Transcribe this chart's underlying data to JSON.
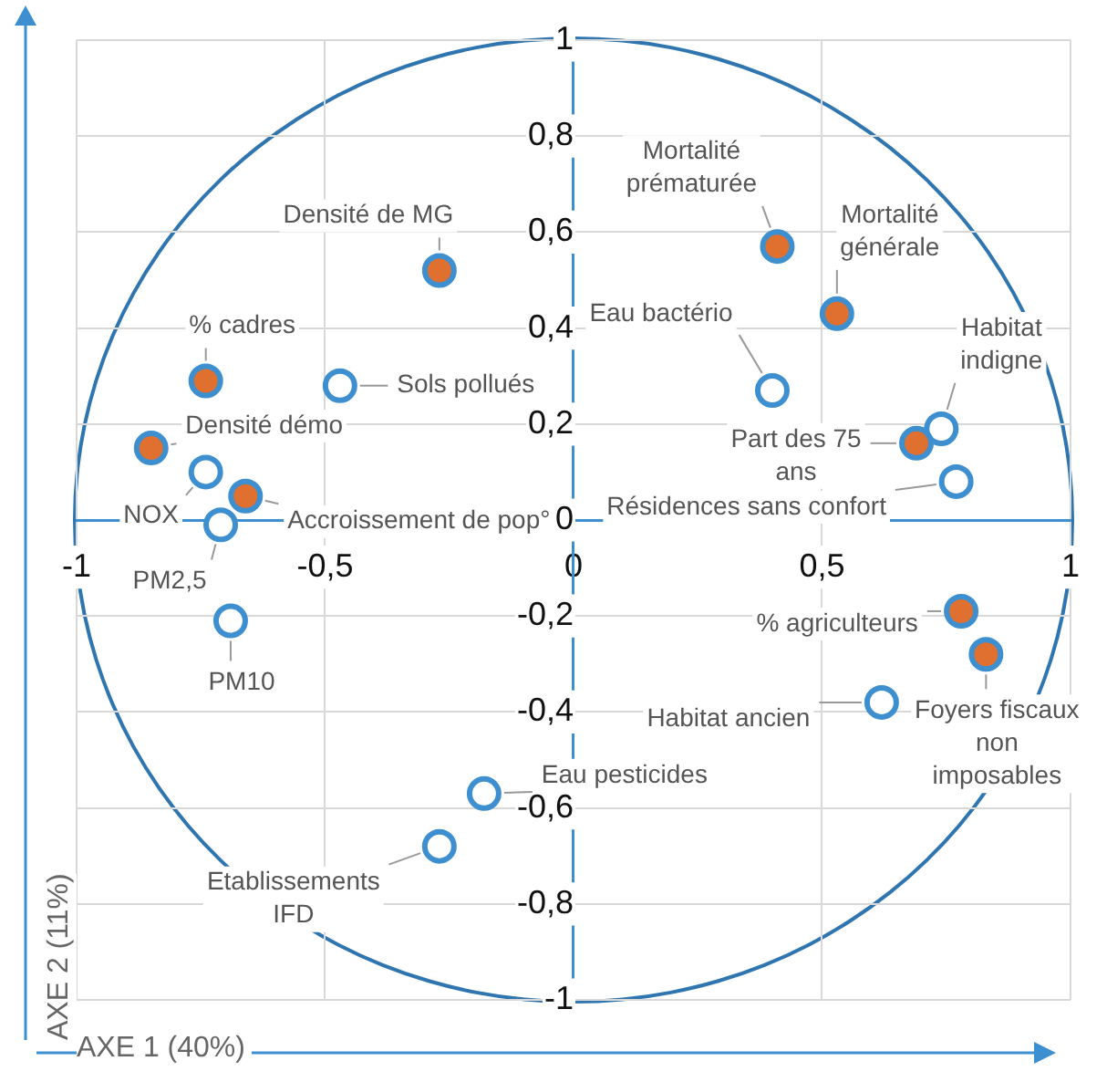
{
  "chart_data": {
    "type": "scatter",
    "xlabel": "AXE 1 (40%)",
    "ylabel": "AXE 2 (11%)",
    "xlim": [
      -1,
      1
    ],
    "ylim": [
      -1,
      1
    ],
    "xticks": [
      -1,
      {
        "value": -0.5,
        "label": "-0,5"
      },
      0,
      {
        "value": 0.5,
        "label": "0,5"
      },
      1
    ],
    "yticks": [
      -1,
      {
        "value": -0.8,
        "label": "-0,8"
      },
      {
        "value": -0.6,
        "label": "-0,6"
      },
      {
        "value": -0.4,
        "label": "-0,4"
      },
      {
        "value": -0.2,
        "label": "-0,2"
      },
      0,
      {
        "value": 0.2,
        "label": "0,2"
      },
      {
        "value": 0.4,
        "label": "0,4"
      },
      {
        "value": 0.6,
        "label": "0,6"
      },
      {
        "value": 0.8,
        "label": "0,8"
      },
      1
    ],
    "grid": true,
    "marker": "circle",
    "series": [
      {
        "color": "#e07030",
        "x": [
          -0.27,
          -0.74,
          -0.85,
          -0.66,
          0.41,
          0.53,
          0.69,
          0.78,
          0.83
        ],
        "values": [
          0.52,
          0.29,
          0.15,
          0.05,
          0.57,
          0.43,
          0.16,
          -0.19,
          -0.28
        ]
      },
      {
        "color": "#ffffff",
        "x": [
          -0.47,
          -0.74,
          -0.71,
          -0.69,
          0.4,
          0.74,
          0.77,
          0.62,
          -0.18,
          -0.27
        ],
        "values": [
          0.28,
          0.1,
          -0.01,
          -0.21,
          0.27,
          0.19,
          0.08,
          -0.38,
          -0.57,
          -0.68
        ]
      }
    ],
    "annotations": [
      {
        "text": "Densité de MG",
        "x": -0.27,
        "y": 0.52
      },
      {
        "text": "% cadres",
        "x": -0.74,
        "y": 0.29
      },
      {
        "text": "Sols pollués",
        "x": -0.47,
        "y": 0.28
      },
      {
        "text": "Densité démo",
        "x": -0.85,
        "y": 0.15
      },
      {
        "text": "NOX",
        "x": -0.74,
        "y": 0.1
      },
      {
        "text": "Accroissement de pop°",
        "x": -0.66,
        "y": 0.05
      },
      {
        "text": "PM2,5",
        "x": -0.71,
        "y": -0.01
      },
      {
        "text": "PM10",
        "x": -0.69,
        "y": -0.21
      },
      {
        "text": "Mortalité prématurée",
        "x": 0.41,
        "y": 0.57
      },
      {
        "text": "Mortalité générale",
        "x": 0.53,
        "y": 0.43
      },
      {
        "text": "Eau bactério",
        "x": 0.4,
        "y": 0.27
      },
      {
        "text": "Habitat indigne",
        "x": 0.74,
        "y": 0.19
      },
      {
        "text": "Part des 75 ans",
        "x": 0.69,
        "y": 0.16
      },
      {
        "text": "Résidences sans confort",
        "x": 0.77,
        "y": 0.08
      },
      {
        "text": "% agriculteurs",
        "x": 0.78,
        "y": -0.19
      },
      {
        "text": "Foyers fiscaux non imposables",
        "x": 0.83,
        "y": -0.28
      },
      {
        "text": "Habitat ancien",
        "x": 0.62,
        "y": -0.38
      },
      {
        "text": "Eau pesticides",
        "x": -0.18,
        "y": -0.57
      },
      {
        "text": "Etablissements IFD",
        "x": -0.27,
        "y": -0.68
      }
    ]
  }
}
